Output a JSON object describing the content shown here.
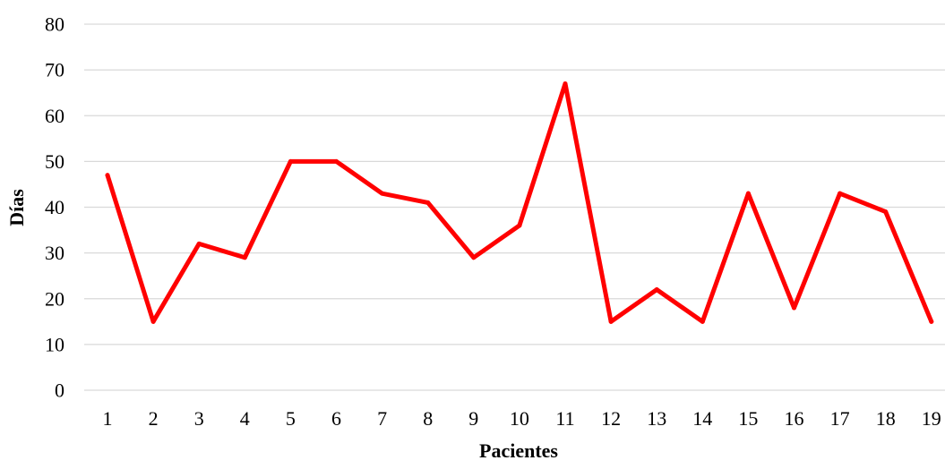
{
  "chart_data": {
    "type": "line",
    "title": "",
    "xlabel": "Pacientes",
    "ylabel": "Días",
    "categories": [
      "1",
      "2",
      "3",
      "4",
      "5",
      "6",
      "7",
      "8",
      "9",
      "10",
      "11",
      "12",
      "13",
      "14",
      "15",
      "16",
      "17",
      "18",
      "19"
    ],
    "series": [
      {
        "values": [
          47,
          15,
          32,
          29,
          50,
          50,
          43,
          41,
          29,
          36,
          67,
          15,
          22,
          15,
          43,
          18,
          43,
          39,
          15
        ]
      }
    ],
    "ylim": [
      0,
      80
    ],
    "yticks": [
      0,
      10,
      20,
      30,
      40,
      50,
      60,
      70,
      80
    ],
    "grid": true,
    "legend": "none",
    "colors": {
      "line": "#ff0000",
      "grid": "#d9d9d9",
      "axis": "#d9d9d9"
    }
  }
}
